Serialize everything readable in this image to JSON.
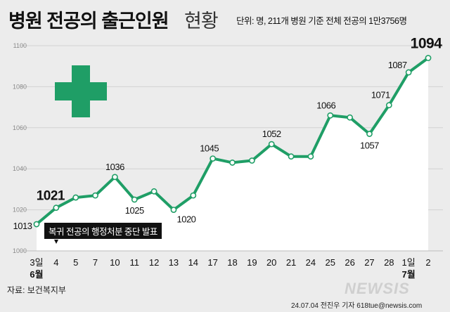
{
  "header": {
    "title_bold": "병원 전공의 출근인원",
    "title_light": "현황",
    "unit_note": "단위: 명, 211개 병원 기준 전체 전공의 1만3756명"
  },
  "annotation": {
    "text": "복귀 전공의 행정처분 중단 발표"
  },
  "footer": {
    "source": "자료: 보건복지부",
    "byline": "24.07.04 전진우 기자 618tue@newsis.com",
    "brand": "NEWSIS"
  },
  "colors": {
    "line": "#1f9e66",
    "cross": "#1f9e66",
    "area": "#ffffff",
    "background": "#ececec"
  },
  "icons": [
    "medical-cross-icon"
  ],
  "chart_data": {
    "type": "area",
    "title": "병원 전공의 출근인원 현황",
    "x": [
      "3일",
      "4",
      "5",
      "7",
      "10",
      "11",
      "12",
      "13",
      "14",
      "17",
      "18",
      "19",
      "20",
      "21",
      "24",
      "25",
      "26",
      "27",
      "28",
      "1일",
      "2"
    ],
    "month_labels": [
      {
        "at_index": 0,
        "text": "6월"
      },
      {
        "at_index": 19,
        "text": "7월"
      }
    ],
    "values": [
      1013,
      1021,
      1026,
      1027,
      1036,
      1025,
      1029,
      1020,
      1027,
      1045,
      1043,
      1044,
      1052,
      1046,
      1046,
      1066,
      1065,
      1057,
      1071,
      1087,
      1094
    ],
    "labels": [
      {
        "index": 0,
        "text": "1013"
      },
      {
        "index": 1,
        "text": "1021"
      },
      {
        "index": 4,
        "text": "1036"
      },
      {
        "index": 5,
        "text": "1025"
      },
      {
        "index": 7,
        "text": "1020"
      },
      {
        "index": 9,
        "text": "1045"
      },
      {
        "index": 12,
        "text": "1052"
      },
      {
        "index": 15,
        "text": "1066"
      },
      {
        "index": 17,
        "text": "1057"
      },
      {
        "index": 18,
        "text": "1071"
      },
      {
        "index": 19,
        "text": "1087"
      },
      {
        "index": 20,
        "text": "1094"
      }
    ],
    "yticks": [
      "1000",
      "1020",
      "1040",
      "1060",
      "1080",
      "1100"
    ],
    "ylim": [
      1000,
      1100
    ],
    "grid": true
  }
}
